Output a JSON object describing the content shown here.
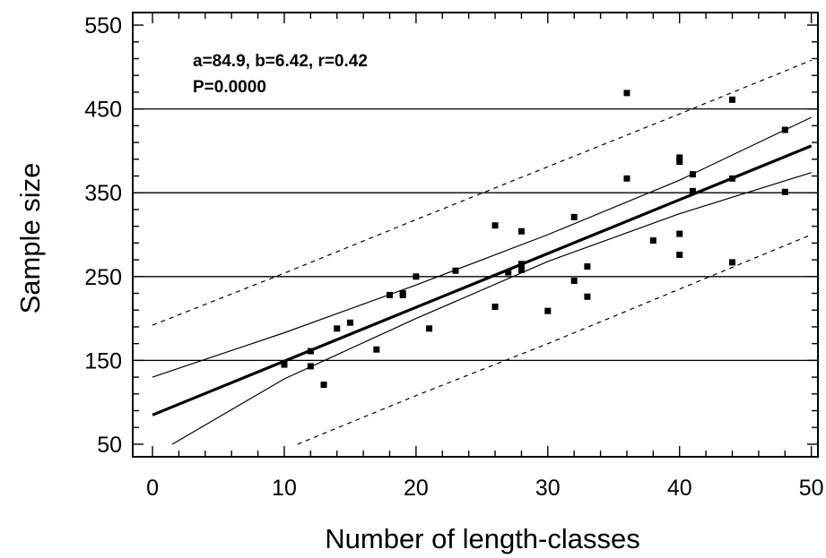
{
  "chart_data": {
    "type": "scatter",
    "xlabel": "Number of length-classes",
    "ylabel": "Sample size",
    "xlim": [
      -1.5,
      50.5
    ],
    "ylim": [
      35,
      565
    ],
    "x_ticks": [
      0,
      10,
      20,
      30,
      40,
      50
    ],
    "y_ticks": [
      50,
      150,
      250,
      350,
      450,
      550
    ],
    "x_tick_labels": [
      "0",
      "10",
      "20",
      "30",
      "40",
      "50"
    ],
    "y_tick_labels": [
      "50",
      "150",
      "250",
      "350",
      "450",
      "550"
    ],
    "gridlines_y": [
      150,
      250,
      350,
      450
    ],
    "annotation": {
      "line1": "a=84.9, b=6.42, r=0.42",
      "line2": "P=0.0000"
    },
    "regression": {
      "intercept": 84.9,
      "slope": 6.42
    },
    "confidence_band": {
      "upper": [
        [
          0,
          130
        ],
        [
          10,
          183
        ],
        [
          20,
          240
        ],
        [
          30,
          300
        ],
        [
          40,
          365
        ],
        [
          50,
          440
        ]
      ],
      "lower": [
        [
          1.5,
          50
        ],
        [
          10,
          128
        ],
        [
          20,
          200
        ],
        [
          30,
          268
        ],
        [
          40,
          325
        ],
        [
          50,
          374
        ]
      ]
    },
    "prediction_band": {
      "upper": [
        [
          0,
          192
        ],
        [
          10,
          254
        ],
        [
          20,
          318
        ],
        [
          30,
          381
        ],
        [
          40,
          444
        ],
        [
          50,
          508
        ]
      ],
      "lower": [
        [
          11,
          50
        ],
        [
          20,
          108
        ],
        [
          30,
          170
        ],
        [
          40,
          235
        ],
        [
          50,
          300
        ]
      ]
    },
    "points": [
      [
        10,
        145
      ],
      [
        12,
        143
      ],
      [
        12,
        161
      ],
      [
        13,
        121
      ],
      [
        14,
        188
      ],
      [
        15,
        195
      ],
      [
        17,
        163
      ],
      [
        18,
        228
      ],
      [
        19,
        228
      ],
      [
        19,
        230
      ],
      [
        20,
        250
      ],
      [
        21,
        188
      ],
      [
        23,
        257
      ],
      [
        26,
        214
      ],
      [
        26,
        311
      ],
      [
        27,
        255
      ],
      [
        28,
        258
      ],
      [
        28,
        265
      ],
      [
        28,
        304
      ],
      [
        30,
        209
      ],
      [
        32,
        245
      ],
      [
        32,
        321
      ],
      [
        33,
        226
      ],
      [
        33,
        262
      ],
      [
        36,
        367
      ],
      [
        36,
        469
      ],
      [
        38,
        293
      ],
      [
        40,
        276
      ],
      [
        40,
        301
      ],
      [
        40,
        387
      ],
      [
        40,
        392
      ],
      [
        41,
        372
      ],
      [
        41,
        352
      ],
      [
        44,
        267
      ],
      [
        44,
        367
      ],
      [
        44,
        461
      ],
      [
        48,
        351
      ],
      [
        48,
        425
      ]
    ]
  }
}
